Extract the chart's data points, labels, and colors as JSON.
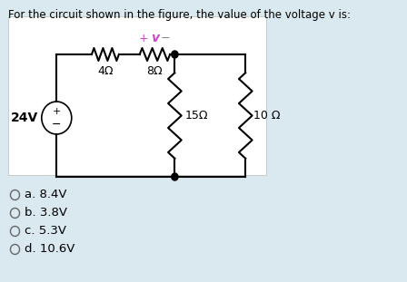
{
  "title": "For the circuit shown in the figure, the value of the voltage v is:",
  "background_color": "#dae8f0",
  "circuit_bg": "#ffffff",
  "options": [
    "a. 8.4V",
    "b. 3.8V",
    "c. 5.3V",
    "d. 10.6V"
  ],
  "resistors": [
    "4Ω",
    "8Ω",
    "15Ω",
    "10 Ω"
  ],
  "voltage_source": "24V",
  "v_plus": "+",
  "v_label": "v",
  "v_minus": "−",
  "v_color": "#cc44cc",
  "minus_color": "#888888",
  "plus_color": "#cc44cc"
}
